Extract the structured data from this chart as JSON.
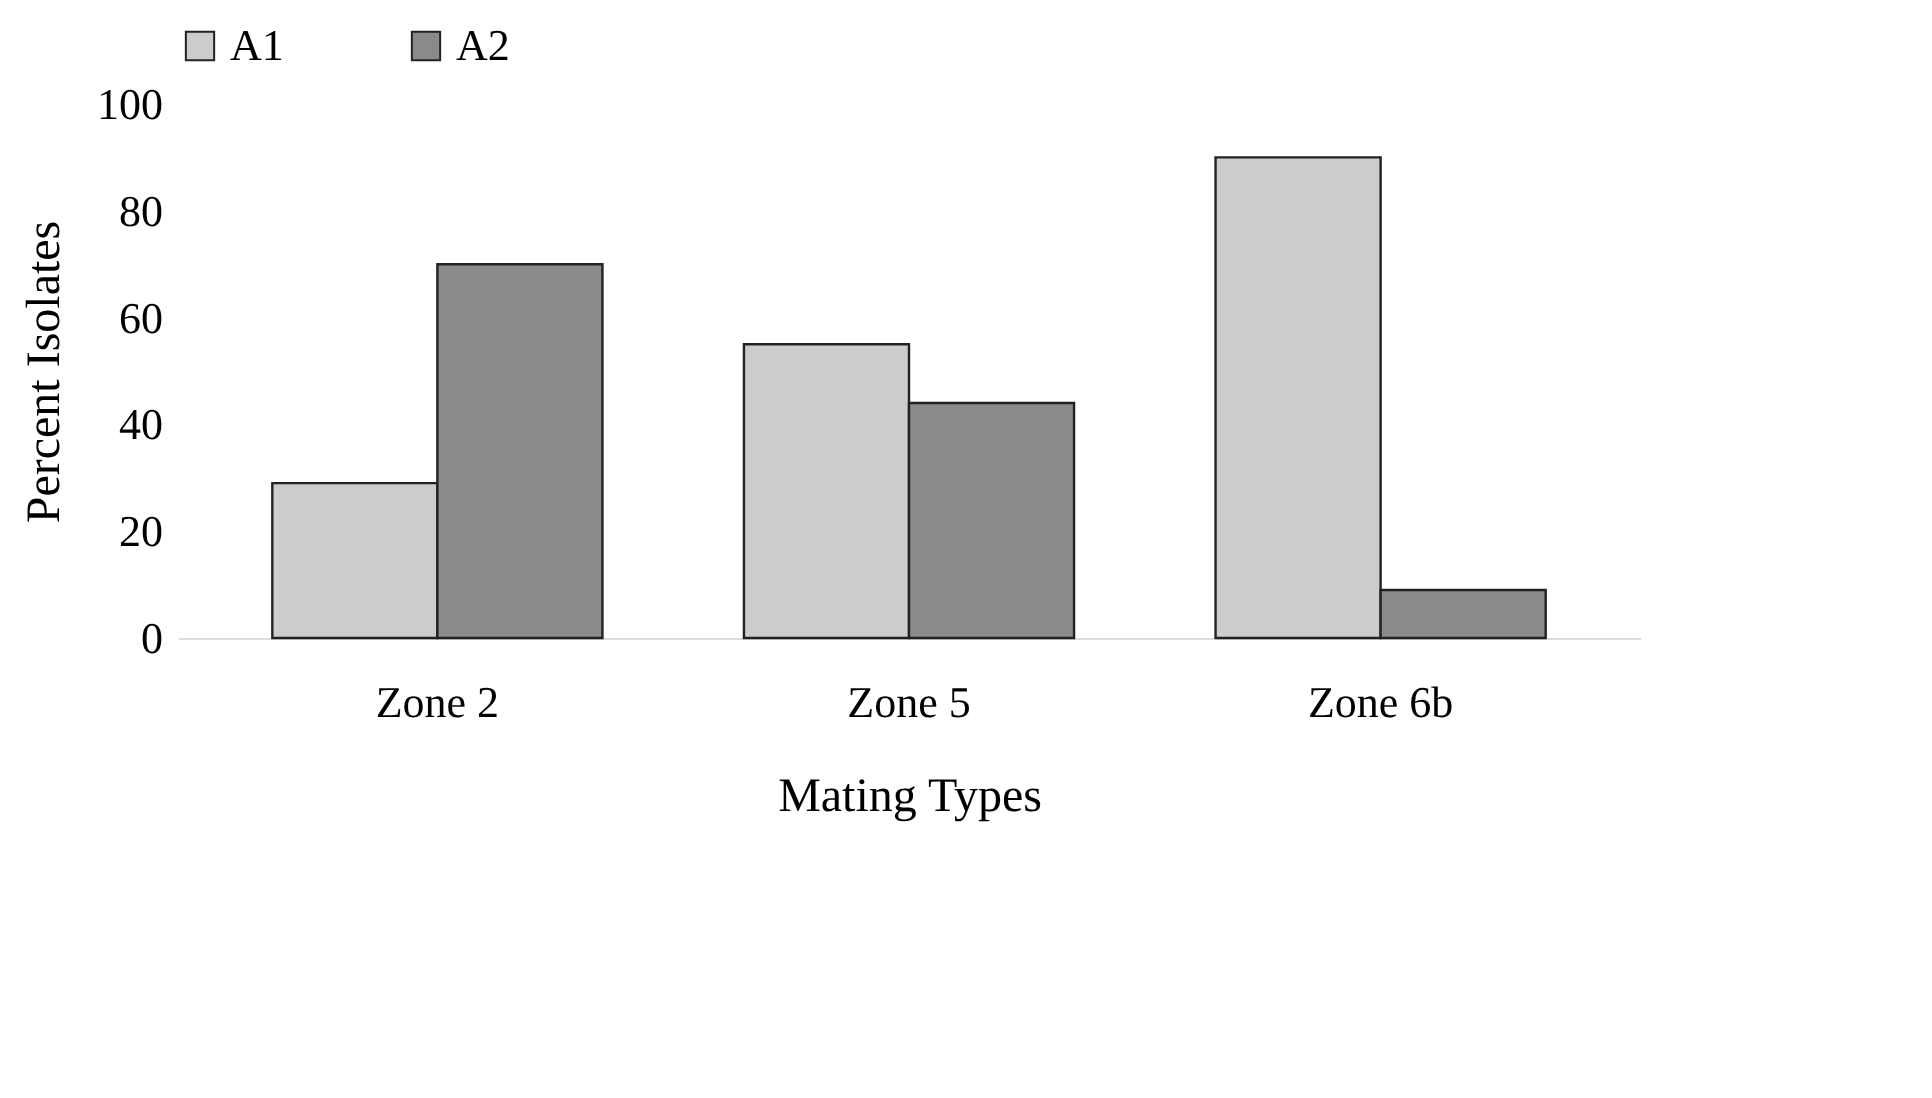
{
  "chart_data": {
    "type": "bar",
    "xlabel": "Mating Types",
    "ylabel": "Percent Isolates",
    "categories": [
      "Zone 2",
      "Zone 5",
      "Zone 6b"
    ],
    "series": [
      {
        "name": "A1",
        "color": "#cccccc",
        "values": [
          29,
          55,
          90
        ]
      },
      {
        "name": "A2",
        "color": "#8a8a8a",
        "values": [
          70,
          44,
          9
        ]
      }
    ],
    "ylim": [
      0,
      100
    ],
    "yticks": [
      0,
      20,
      40,
      60,
      80,
      100
    ],
    "legend": "top"
  }
}
